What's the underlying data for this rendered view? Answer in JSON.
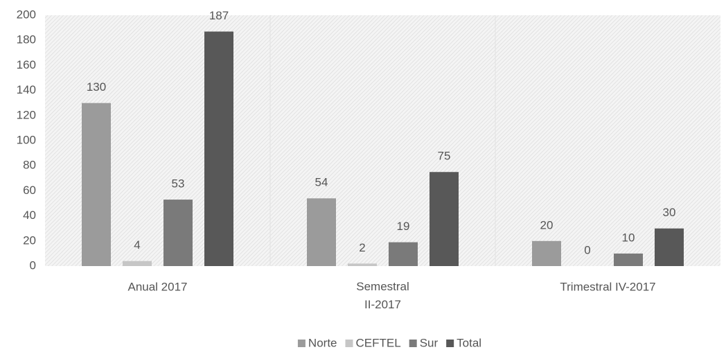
{
  "chart_data": {
    "type": "bar",
    "categories": [
      "Anual 2017",
      "Semestral\nII-2017",
      "Trimestral IV-2017"
    ],
    "series": [
      {
        "name": "Norte",
        "color": "#9b9b9b",
        "values": [
          130,
          54,
          20
        ]
      },
      {
        "name": "CEFTEL",
        "color": "#c6c6c6",
        "values": [
          4,
          2,
          0
        ]
      },
      {
        "name": "Sur",
        "color": "#7a7a7a",
        "values": [
          53,
          19,
          10
        ]
      },
      {
        "name": "Total",
        "color": "#585858",
        "values": [
          187,
          75,
          30
        ]
      }
    ],
    "ylim": [
      0,
      200
    ],
    "yticks": [
      0,
      20,
      40,
      60,
      80,
      100,
      120,
      140,
      160,
      180,
      200
    ],
    "grid": false,
    "legend": "bottom"
  }
}
